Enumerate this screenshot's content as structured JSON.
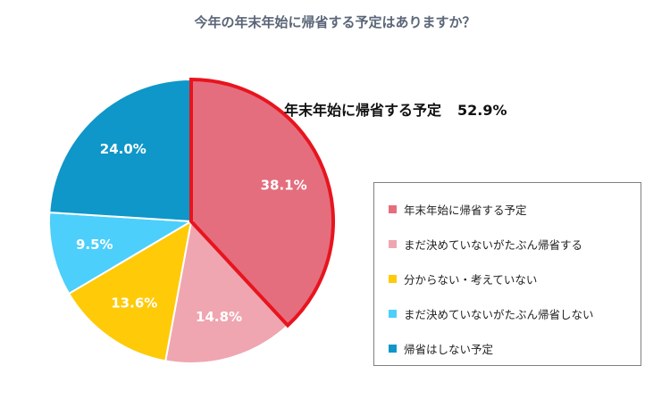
{
  "title": "今年の年末年始に帰省する予定はありますか？",
  "callout": {
    "label": "年末年始に帰省する予定",
    "value": "52.9%"
  },
  "chart_data": {
    "type": "pie",
    "title": "今年の年末年始に帰省する予定はありますか？",
    "slices": [
      {
        "label": "年末年始に帰省する予定",
        "value": 38.1,
        "display": "38.1%",
        "color": "#E46E7E"
      },
      {
        "label": "まだ決めていないがたぶん帰省する",
        "value": 14.8,
        "display": "14.8%",
        "color": "#EFA6B1"
      },
      {
        "label": "分からない・考えていない",
        "value": 13.6,
        "display": "13.6%",
        "color": "#FFCA08"
      },
      {
        "label": "まだ決めていないがたぶん帰省しない",
        "value": 9.5,
        "display": "9.5%",
        "color": "#4CCFFB"
      },
      {
        "label": "帰省はしない予定",
        "value": 24.0,
        "display": "24.0%",
        "color": "#0E97C8"
      }
    ],
    "highlight_color": "#E8141E",
    "legend_position": "right"
  }
}
